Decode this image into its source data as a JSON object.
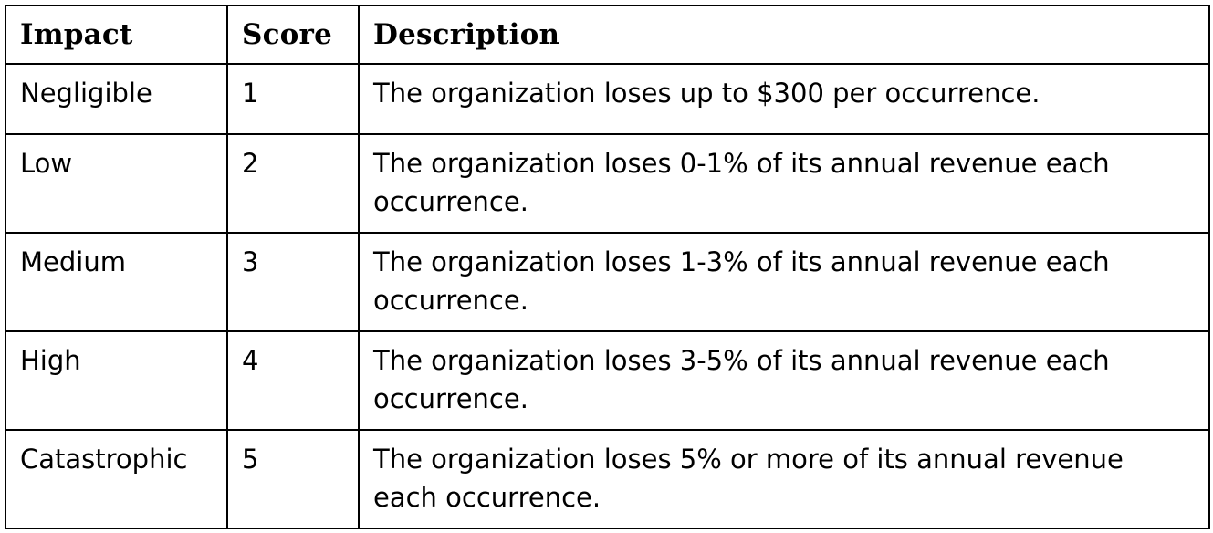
{
  "table": {
    "headers": {
      "impact": "Impact",
      "score": "Score",
      "description": "Description"
    },
    "rows": [
      {
        "impact": "Negligible",
        "score": "1",
        "description": "The organization loses up to $300 per occurrence."
      },
      {
        "impact": "Low",
        "score": "2",
        "description": "The organization loses 0-1% of its annual revenue each occurrence."
      },
      {
        "impact": "Medium",
        "score": "3",
        "description": "The organization loses 1-3% of its annual revenue each occurrence."
      },
      {
        "impact": "High",
        "score": "4",
        "description": "The organization loses 3-5% of its annual revenue each occurrence."
      },
      {
        "impact": "Catastrophic",
        "score": "5",
        "description": "The organization loses 5% or more of its annual revenue each occurrence."
      }
    ]
  }
}
